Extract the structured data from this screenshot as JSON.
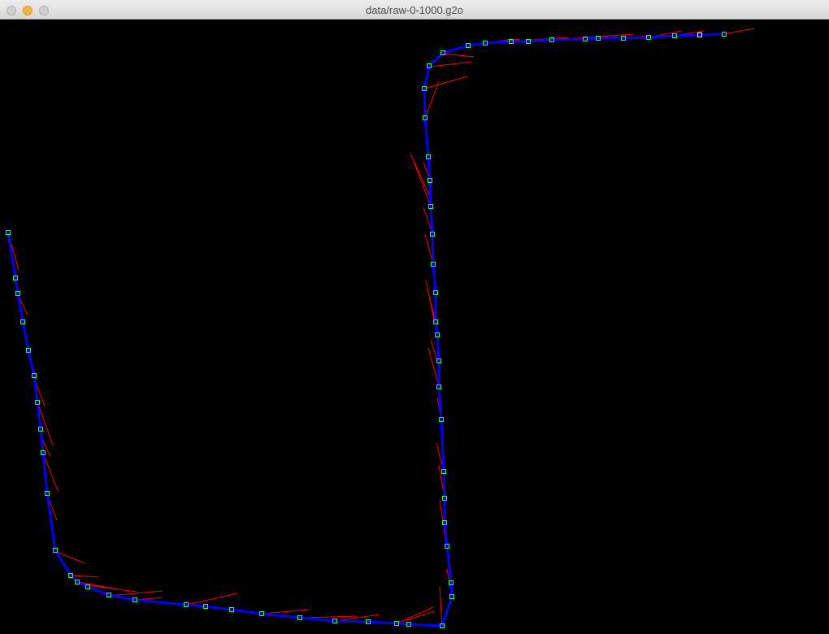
{
  "window": {
    "title": "data/raw-0-1000.g2o"
  },
  "window_controls": {
    "close": {
      "color": "#cfcfcf"
    },
    "minimize": {
      "color": "#f6b53c"
    },
    "zoom": {
      "color": "#cfcfcf"
    }
  },
  "canvas": {
    "background": "#000000",
    "trajectory_color": "#0000ff",
    "observation_color": "#ff0000",
    "node_color": "#33ff33",
    "highlight_node_color": "#ffffff"
  }
}
